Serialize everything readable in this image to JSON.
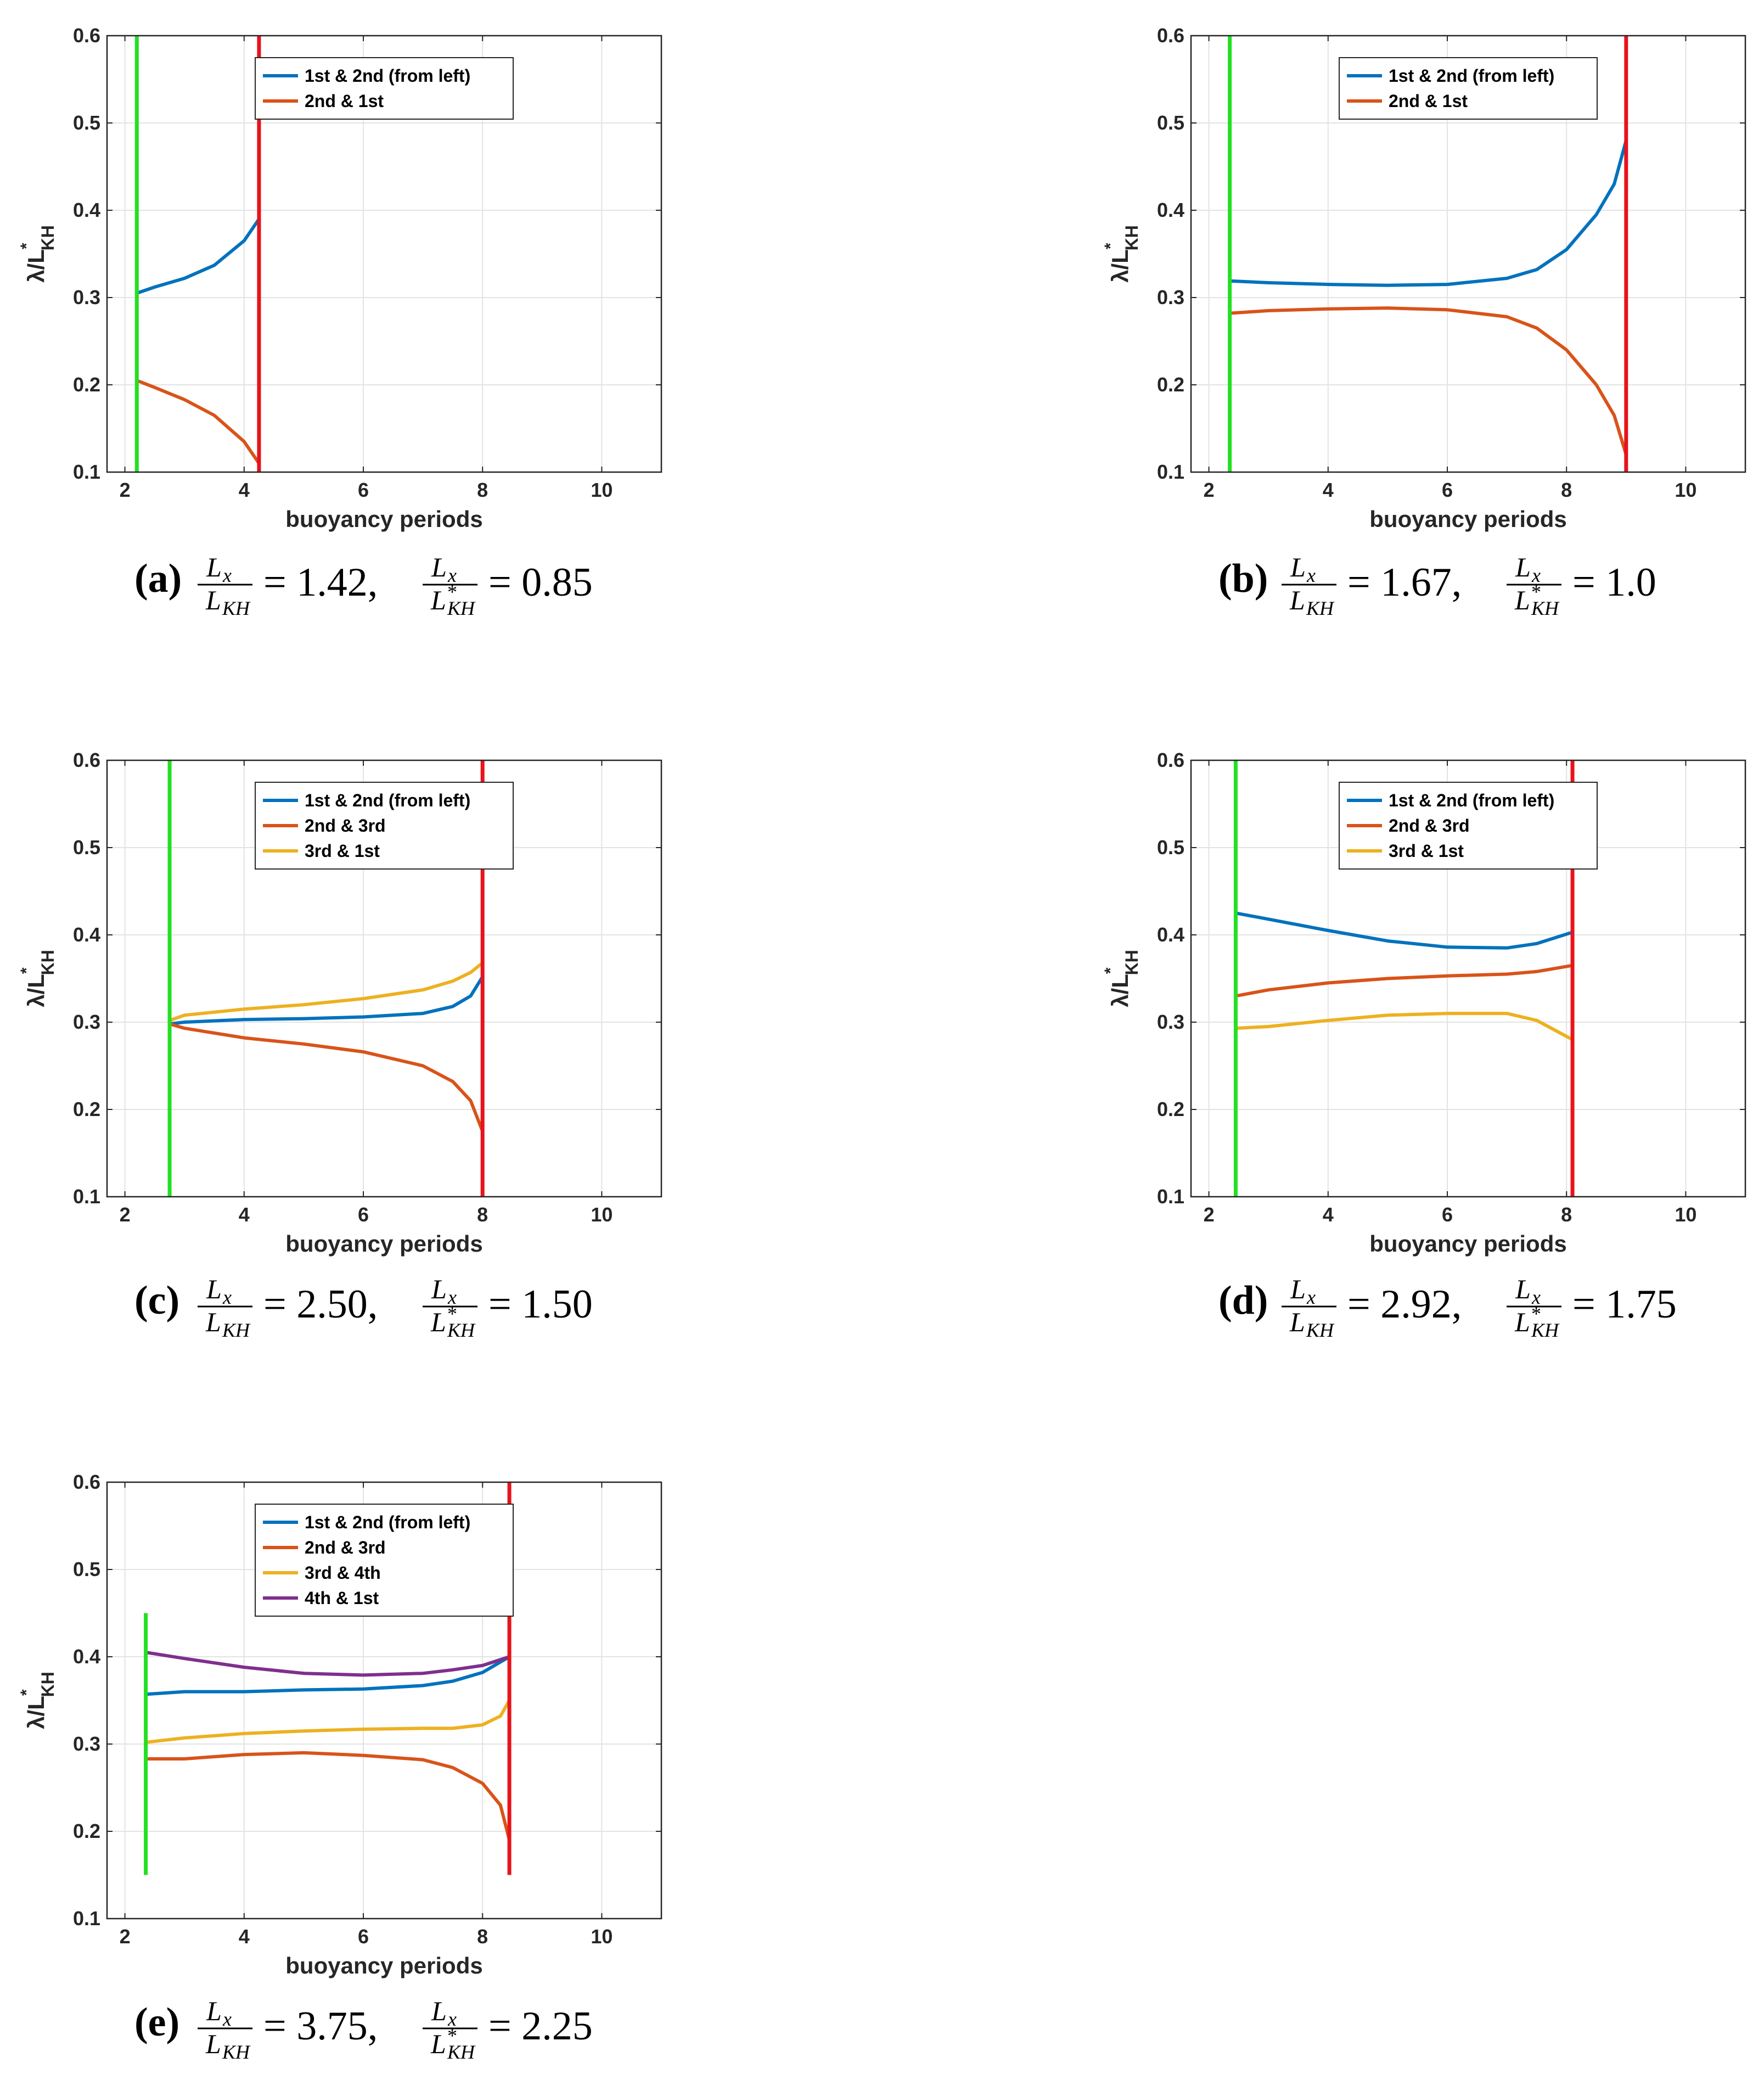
{
  "colors": {
    "series": [
      "#0072BD",
      "#D95319",
      "#EDB120",
      "#7E2F8E"
    ],
    "start_marker": "#22E022",
    "end_marker": "#E8131B"
  },
  "chart_data": [
    {
      "id": "a",
      "type": "line",
      "xlabel": "buoyancy periods",
      "ylabel": "λ/L*KH",
      "ylabel_parts": {
        "main": "λ/L",
        "sup": "*",
        "sub": "KH"
      },
      "xlim": [
        1.7,
        11
      ],
      "ylim": [
        0.1,
        0.6
      ],
      "xticks": [
        2,
        4,
        6,
        8,
        10
      ],
      "yticks": [
        0.1,
        0.2,
        0.3,
        0.4,
        0.5,
        0.6
      ],
      "grid": true,
      "legend_position": "top-center",
      "start_line": {
        "x": 2.2,
        "y": [
          0.1,
          0.6
        ]
      },
      "end_line": {
        "x": 4.25,
        "y": [
          0.1,
          0.6
        ]
      },
      "series": [
        {
          "name": "1st & 2nd (from left)",
          "x": [
            2.2,
            2.5,
            3.0,
            3.5,
            4.0,
            4.25
          ],
          "y": [
            0.305,
            0.312,
            0.322,
            0.337,
            0.365,
            0.39
          ]
        },
        {
          "name": "2nd & 1st",
          "x": [
            2.2,
            2.5,
            3.0,
            3.5,
            4.0,
            4.25
          ],
          "y": [
            0.205,
            0.197,
            0.183,
            0.165,
            0.135,
            0.11
          ]
        }
      ],
      "caption": {
        "label": "(a)",
        "num1": "L",
        "num1_sub": "x",
        "den1": "L",
        "den1_sub": "KH",
        "value1": "= 1.42,",
        "num2": "L",
        "num2_sub": "x",
        "den2": "L",
        "den2_sup": "*",
        "den2_sub": "KH",
        "value2": "= 0.85"
      }
    },
    {
      "id": "b",
      "type": "line",
      "xlabel": "buoyancy periods",
      "ylabel": "λ/L*KH",
      "ylabel_parts": {
        "main": "λ/L",
        "sup": "*",
        "sub": "KH"
      },
      "xlim": [
        1.7,
        11
      ],
      "ylim": [
        0.1,
        0.6
      ],
      "xticks": [
        2,
        4,
        6,
        8,
        10
      ],
      "yticks": [
        0.1,
        0.2,
        0.3,
        0.4,
        0.5,
        0.6
      ],
      "grid": true,
      "legend_position": "top-center",
      "start_line": {
        "x": 2.35,
        "y": [
          0.1,
          0.6
        ]
      },
      "end_line": {
        "x": 9.0,
        "y": [
          0.1,
          0.6
        ]
      },
      "series": [
        {
          "name": "1st & 2nd (from left)",
          "x": [
            2.35,
            3,
            4,
            5,
            6,
            7,
            7.5,
            8,
            8.5,
            8.8,
            9.0
          ],
          "y": [
            0.319,
            0.317,
            0.315,
            0.314,
            0.315,
            0.322,
            0.332,
            0.355,
            0.395,
            0.43,
            0.48
          ]
        },
        {
          "name": "2nd & 1st",
          "x": [
            2.35,
            3,
            4,
            5,
            6,
            7,
            7.5,
            8,
            8.5,
            8.8,
            9.0
          ],
          "y": [
            0.282,
            0.285,
            0.287,
            0.288,
            0.286,
            0.278,
            0.265,
            0.24,
            0.2,
            0.165,
            0.12
          ]
        }
      ],
      "caption": {
        "label": "(b)",
        "num1": "L",
        "num1_sub": "x",
        "den1": "L",
        "den1_sub": "KH",
        "value1": "= 1.67,",
        "num2": "L",
        "num2_sub": "x",
        "den2": "L",
        "den2_sup": "*",
        "den2_sub": "KH",
        "value2": "= 1.0"
      }
    },
    {
      "id": "c",
      "type": "line",
      "xlabel": "buoyancy periods",
      "ylabel": "λ/L*KH",
      "ylabel_parts": {
        "main": "λ/L",
        "sup": "*",
        "sub": "KH"
      },
      "xlim": [
        1.7,
        11
      ],
      "ylim": [
        0.1,
        0.6
      ],
      "xticks": [
        2,
        4,
        6,
        8,
        10
      ],
      "yticks": [
        0.1,
        0.2,
        0.3,
        0.4,
        0.5,
        0.6
      ],
      "grid": true,
      "legend_position": "top-center",
      "start_line": {
        "x": 2.75,
        "y": [
          0.1,
          0.6
        ]
      },
      "end_line": {
        "x": 8.0,
        "y": [
          0.1,
          0.6
        ]
      },
      "series": [
        {
          "name": "1st & 2nd (from left)",
          "x": [
            2.75,
            3,
            4,
            5,
            6,
            7,
            7.5,
            7.8,
            8.0
          ],
          "y": [
            0.298,
            0.3,
            0.303,
            0.304,
            0.306,
            0.31,
            0.318,
            0.33,
            0.352
          ]
        },
        {
          "name": "2nd & 3rd",
          "x": [
            2.75,
            3,
            4,
            5,
            6,
            7,
            7.5,
            7.8,
            8.0
          ],
          "y": [
            0.298,
            0.293,
            0.282,
            0.275,
            0.266,
            0.25,
            0.232,
            0.21,
            0.175
          ]
        },
        {
          "name": "3rd & 1st",
          "x": [
            2.75,
            3,
            4,
            5,
            6,
            7,
            7.5,
            7.8,
            8.0
          ],
          "y": [
            0.302,
            0.308,
            0.315,
            0.32,
            0.327,
            0.337,
            0.347,
            0.357,
            0.368
          ]
        }
      ],
      "caption": {
        "label": "(c)",
        "num1": "L",
        "num1_sub": "x",
        "den1": "L",
        "den1_sub": "KH",
        "value1": "= 2.50,",
        "num2": "L",
        "num2_sub": "x",
        "den2": "L",
        "den2_sup": "*",
        "den2_sub": "KH",
        "value2": "= 1.50"
      }
    },
    {
      "id": "d",
      "type": "line",
      "xlabel": "buoyancy periods",
      "ylabel": "λ/L*KH",
      "ylabel_parts": {
        "main": "λ/L",
        "sup": "*",
        "sub": "KH"
      },
      "xlim": [
        1.7,
        11
      ],
      "ylim": [
        0.1,
        0.6
      ],
      "xticks": [
        2,
        4,
        6,
        8,
        10
      ],
      "yticks": [
        0.1,
        0.2,
        0.3,
        0.4,
        0.5,
        0.6
      ],
      "grid": true,
      "legend_position": "top-center",
      "start_line": {
        "x": 2.45,
        "y": [
          0.1,
          0.6
        ]
      },
      "end_line": {
        "x": 8.1,
        "y": [
          0.1,
          0.6
        ]
      },
      "series": [
        {
          "name": "1st & 2nd (from left)",
          "x": [
            2.45,
            3,
            4,
            5,
            6,
            7,
            7.5,
            8.1
          ],
          "y": [
            0.425,
            0.418,
            0.405,
            0.393,
            0.386,
            0.385,
            0.39,
            0.403
          ]
        },
        {
          "name": "2nd & 3rd",
          "x": [
            2.45,
            3,
            4,
            5,
            6,
            7,
            7.5,
            8.1
          ],
          "y": [
            0.33,
            0.337,
            0.345,
            0.35,
            0.353,
            0.355,
            0.358,
            0.365
          ]
        },
        {
          "name": "3rd & 1st",
          "x": [
            2.45,
            3,
            4,
            5,
            6,
            7,
            7.5,
            8.1
          ],
          "y": [
            0.293,
            0.295,
            0.302,
            0.308,
            0.31,
            0.31,
            0.302,
            0.28
          ]
        }
      ],
      "caption": {
        "label": "(d)",
        "num1": "L",
        "num1_sub": "x",
        "den1": "L",
        "den1_sub": "KH",
        "value1": "= 2.92,",
        "num2": "L",
        "num2_sub": "x",
        "den2": "L",
        "den2_sup": "*",
        "den2_sub": "KH",
        "value2": "= 1.75"
      }
    },
    {
      "id": "e",
      "type": "line",
      "xlabel": "buoyancy periods",
      "ylabel": "λ/L*KH",
      "ylabel_parts": {
        "main": "λ/L",
        "sup": "*",
        "sub": "KH"
      },
      "xlim": [
        1.7,
        11
      ],
      "ylim": [
        0.1,
        0.6
      ],
      "xticks": [
        2,
        4,
        6,
        8,
        10
      ],
      "yticks": [
        0.1,
        0.2,
        0.3,
        0.4,
        0.5,
        0.6
      ],
      "grid": true,
      "legend_position": "top-center",
      "start_line": {
        "x": 2.35,
        "y": [
          0.15,
          0.45
        ]
      },
      "end_line": {
        "x": 8.45,
        "y": [
          0.15,
          0.6
        ]
      },
      "series": [
        {
          "name": "1st & 2nd (from left)",
          "x": [
            2.35,
            3,
            4,
            5,
            6,
            7,
            7.5,
            8,
            8.45
          ],
          "y": [
            0.357,
            0.36,
            0.36,
            0.362,
            0.363,
            0.367,
            0.372,
            0.382,
            0.4
          ]
        },
        {
          "name": "2nd & 3rd",
          "x": [
            2.35,
            3,
            4,
            5,
            6,
            7,
            7.5,
            8,
            8.3,
            8.45
          ],
          "y": [
            0.283,
            0.283,
            0.288,
            0.29,
            0.287,
            0.282,
            0.273,
            0.255,
            0.23,
            0.19
          ]
        },
        {
          "name": "3rd & 4th",
          "x": [
            2.35,
            3,
            4,
            5,
            6,
            7,
            7.5,
            8,
            8.3,
            8.45
          ],
          "y": [
            0.302,
            0.307,
            0.312,
            0.315,
            0.317,
            0.318,
            0.318,
            0.322,
            0.332,
            0.35
          ]
        },
        {
          "name": "4th & 1st",
          "x": [
            2.35,
            3,
            4,
            5,
            6,
            7,
            7.5,
            8,
            8.45
          ],
          "y": [
            0.405,
            0.398,
            0.388,
            0.381,
            0.379,
            0.381,
            0.385,
            0.39,
            0.4
          ]
        }
      ],
      "caption": {
        "label": "(e)",
        "num1": "L",
        "num1_sub": "x",
        "den1": "L",
        "den1_sub": "KH",
        "value1": "= 3.75,",
        "num2": "L",
        "num2_sub": "x",
        "den2": "L",
        "den2_sup": "*",
        "den2_sub": "KH",
        "value2": "= 2.25"
      }
    }
  ]
}
